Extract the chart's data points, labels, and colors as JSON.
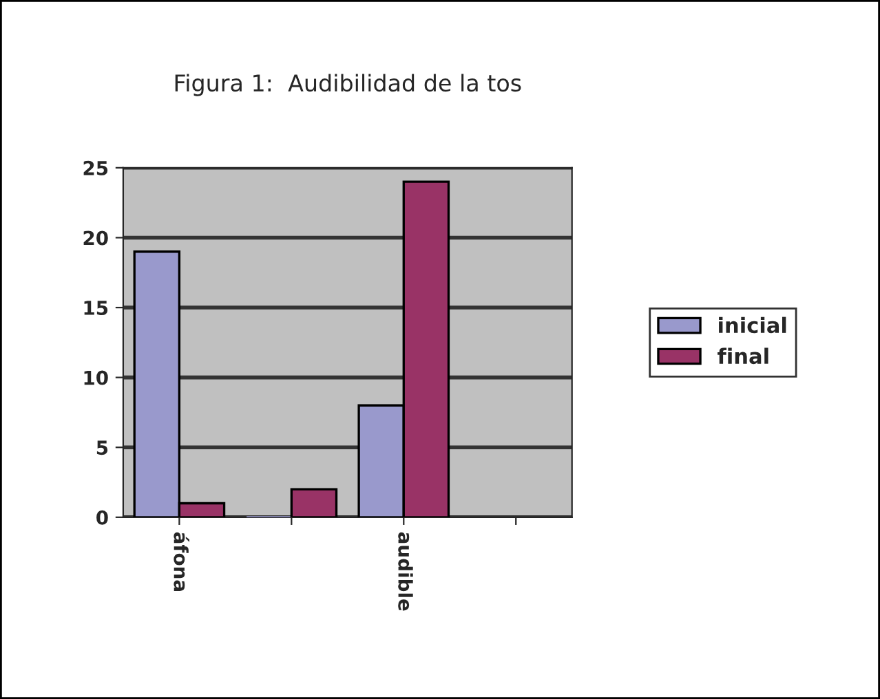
{
  "chart_data": {
    "type": "bar",
    "title": "Figura 1:  Audibilidad de la tos",
    "categories": [
      "áfona",
      null,
      "audible",
      null
    ],
    "series": [
      {
        "name": "inicial",
        "color": "#9999cc",
        "values": [
          19,
          0,
          8,
          null
        ]
      },
      {
        "name": "final",
        "color": "#993366",
        "values": [
          1,
          2,
          24,
          null
        ]
      }
    ],
    "ylim": [
      0,
      25
    ],
    "yticks": [
      0,
      5,
      10,
      15,
      20,
      25
    ],
    "grid": "y",
    "legend": "right"
  }
}
